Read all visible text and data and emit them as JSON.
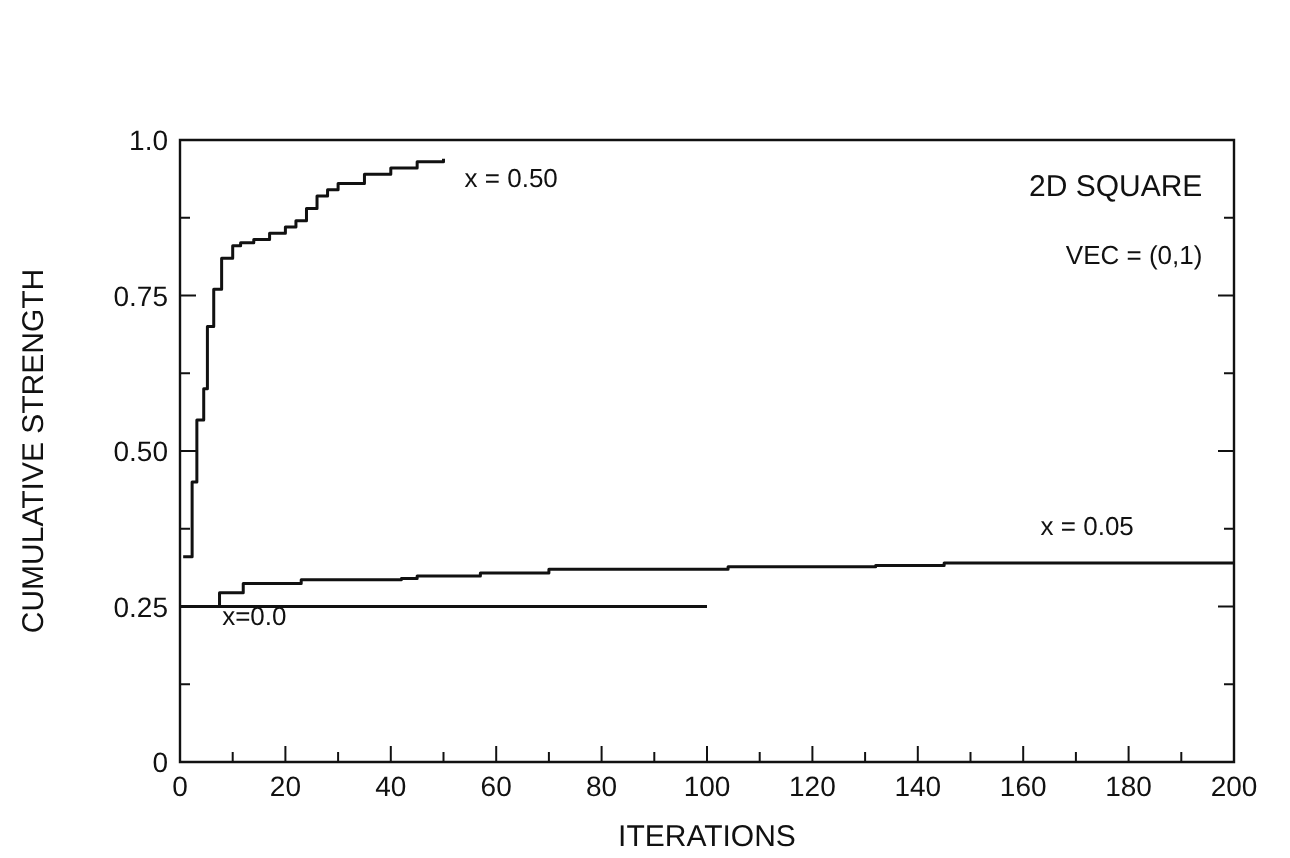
{
  "chart_data": {
    "type": "step",
    "xlabel": "ITERATIONS",
    "ylabel": "CUMULATIVE STRENGTH",
    "xlim": [
      0,
      200
    ],
    "ylim": [
      0,
      1.0
    ],
    "xticks": [
      0,
      {
        "value": 10,
        "label": null
      },
      20,
      {
        "value": 30,
        "label": null
      },
      40,
      {
        "value": 50,
        "label": null
      },
      60,
      {
        "value": 70,
        "label": null
      },
      80,
      {
        "value": 90,
        "label": null
      },
      100,
      {
        "value": 110,
        "label": null
      },
      120,
      {
        "value": 130,
        "label": null
      },
      140,
      {
        "value": 150,
        "label": null
      },
      160,
      {
        "value": 170,
        "label": null
      },
      180,
      {
        "value": 190,
        "label": null
      },
      200
    ],
    "yticks": [
      0,
      {
        "value": 0.125,
        "label": null
      },
      {
        "value": 0.25,
        "label": "0.25"
      },
      {
        "value": 0.375,
        "label": null
      },
      {
        "value": 0.5,
        "label": "0.50"
      },
      {
        "value": 0.625,
        "label": null
      },
      {
        "value": 0.75,
        "label": "0.75"
      },
      {
        "value": 0.875,
        "label": null
      },
      {
        "value": 1.0,
        "label": "1.0"
      }
    ],
    "marker": "none",
    "line_style": "solid",
    "series": [
      {
        "color": "#111111",
        "x": [
          0.6,
          2.3,
          3.2,
          4.5,
          5.2,
          6.4,
          7.9,
          10,
          11.5,
          14,
          17,
          20,
          22,
          24,
          26,
          28,
          30,
          35,
          40,
          45,
          50
        ],
        "values": [
          0.33,
          0.45,
          0.55,
          0.6,
          0.7,
          0.76,
          0.81,
          0.83,
          0.835,
          0.84,
          0.85,
          0.86,
          0.87,
          0.89,
          0.91,
          0.92,
          0.93,
          0.945,
          0.955,
          0.965,
          0.97
        ]
      },
      {
        "color": "#111111",
        "x": [
          0,
          7.5,
          12,
          23,
          42,
          45,
          57,
          70,
          104,
          132,
          145,
          200
        ],
        "values": [
          0.25,
          0.272,
          0.287,
          0.293,
          0.295,
          0.299,
          0.304,
          0.31,
          0.314,
          0.316,
          0.32,
          0.32
        ]
      },
      {
        "color": "#111111",
        "x": [
          0,
          100
        ],
        "values": [
          0.25,
          0.25
        ]
      }
    ],
    "annotations": [
      "x = 0.50",
      "x = 0.05",
      "x=0.0",
      "2D SQUARE",
      "VEC = (0,1)"
    ]
  }
}
